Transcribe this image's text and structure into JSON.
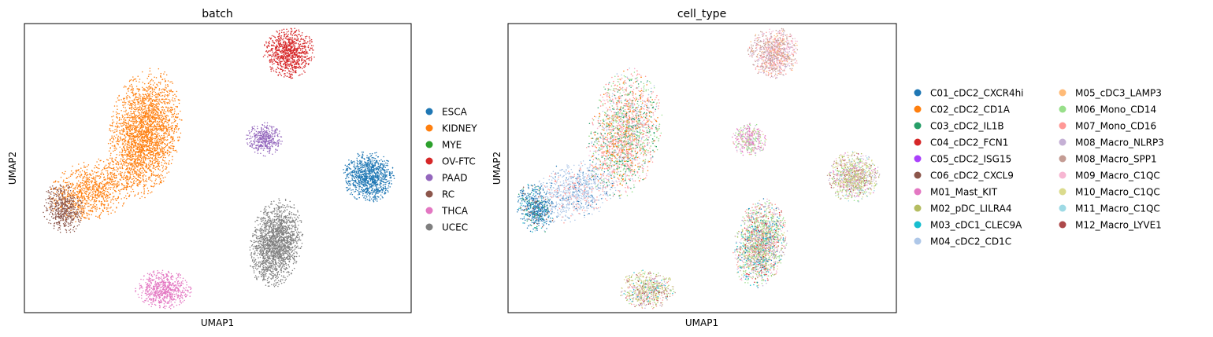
{
  "chart_data": [
    {
      "type": "scatter",
      "title": "batch",
      "xlabel": "UMAP1",
      "ylabel": "UMAP2",
      "grid": false,
      "legend_position": "right",
      "categories": [
        "ESCA",
        "KIDNEY",
        "MYE",
        "OV-FTC",
        "PAAD",
        "RC",
        "THCA",
        "UCEC"
      ],
      "colors": [
        "#1f77b4",
        "#ff7f0e",
        "#2ca02c",
        "#d62728",
        "#9467bd",
        "#8c564b",
        "#e377c2",
        "#7f7f7f"
      ],
      "clusters": [
        {
          "category": "KIDNEY",
          "cx": 0.31,
          "cy": 0.38,
          "rx": 0.09,
          "ry": 0.22,
          "rot": 10,
          "n": 2600
        },
        {
          "category": "KIDNEY",
          "cx": 0.17,
          "cy": 0.58,
          "rx": 0.11,
          "ry": 0.1,
          "rot": -20,
          "n": 900
        },
        {
          "category": "RC",
          "cx": 0.1,
          "cy": 0.64,
          "rx": 0.05,
          "ry": 0.085,
          "rot": -15,
          "n": 500
        },
        {
          "category": "OV-FTC",
          "cx": 0.685,
          "cy": 0.1,
          "rx": 0.065,
          "ry": 0.085,
          "rot": -35,
          "n": 900
        },
        {
          "category": "PAAD",
          "cx": 0.62,
          "cy": 0.4,
          "rx": 0.045,
          "ry": 0.058,
          "rot": 0,
          "n": 380
        },
        {
          "category": "ESCA",
          "cx": 0.89,
          "cy": 0.53,
          "rx": 0.065,
          "ry": 0.085,
          "rot": 0,
          "n": 1000
        },
        {
          "category": "UCEC",
          "cx": 0.65,
          "cy": 0.76,
          "rx": 0.065,
          "ry": 0.15,
          "rot": 10,
          "n": 1800
        },
        {
          "category": "THCA",
          "cx": 0.36,
          "cy": 0.92,
          "rx": 0.07,
          "ry": 0.065,
          "rot": 0,
          "n": 650
        }
      ]
    },
    {
      "type": "scatter",
      "title": "cell_type",
      "xlabel": "UMAP1",
      "ylabel": "UMAP2",
      "grid": false,
      "legend_position": "right",
      "categories": [
        "C01_cDC2_CXCR4hi",
        "C02_cDC2_CD1A",
        "C03_cDC2_IL1B",
        "C04_cDC2_FCN1",
        "C05_cDC2_ISG15",
        "C06_cDC2_CXCL9",
        "M01_Mast_KIT",
        "M02_pDC_LILRA4",
        "M03_cDC1_CLEC9A",
        "M04_cDC2_CD1C",
        "M05_cDC3_LAMP3",
        "M06_Mono_CD14",
        "M07_Mono_CD16",
        "M08_Macro_NLRP3",
        "M08_Macro_SPP1",
        "M09_Macro_C1QC",
        "M10_Macro_C1QC",
        "M11_Macro_C1QC",
        "M12_Macro_LYVE1"
      ],
      "colors": [
        "#1f77b4",
        "#ff7f0e",
        "#279e68",
        "#d62728",
        "#aa40fc",
        "#8c564b",
        "#e377c2",
        "#b5bd61",
        "#17becf",
        "#aec7e8",
        "#ffbb78",
        "#98df8a",
        "#ff9896",
        "#c5b0d5",
        "#c49c94",
        "#f7b6d2",
        "#dbdb8d",
        "#9edae5",
        "#ad494a"
      ],
      "clusters": [
        {
          "mix": [
            12,
            11,
            2,
            1,
            15,
            9
          ],
          "cx": 0.3,
          "cy": 0.38,
          "rx": 0.09,
          "ry": 0.22,
          "rot": 10,
          "n": 2600
        },
        {
          "mix": [
            9,
            9,
            9,
            12,
            0
          ],
          "cx": 0.17,
          "cy": 0.58,
          "rx": 0.11,
          "ry": 0.1,
          "rot": -20,
          "n": 900
        },
        {
          "mix": [
            0,
            0,
            0,
            9,
            5,
            8,
            2
          ],
          "cx": 0.07,
          "cy": 0.64,
          "rx": 0.045,
          "ry": 0.085,
          "rot": -15,
          "n": 550
        },
        {
          "mix": [
            14,
            15,
            12,
            13,
            10
          ],
          "cx": 0.685,
          "cy": 0.1,
          "rx": 0.065,
          "ry": 0.085,
          "rot": -35,
          "n": 900
        },
        {
          "mix": [
            6,
            11,
            15,
            13,
            16
          ],
          "cx": 0.62,
          "cy": 0.4,
          "rx": 0.045,
          "ry": 0.058,
          "rot": 0,
          "n": 380
        },
        {
          "mix": [
            16,
            7,
            13,
            14,
            11,
            6,
            18,
            17,
            15
          ],
          "cx": 0.89,
          "cy": 0.53,
          "rx": 0.065,
          "ry": 0.085,
          "rot": 0,
          "n": 1000
        },
        {
          "mix": [
            11,
            12,
            13,
            14,
            8,
            16,
            7,
            15,
            3,
            0
          ],
          "cx": 0.65,
          "cy": 0.76,
          "rx": 0.065,
          "ry": 0.15,
          "rot": 10,
          "n": 1800
        },
        {
          "mix": [
            16,
            7,
            14,
            11,
            13,
            15,
            18,
            12,
            8
          ],
          "cx": 0.36,
          "cy": 0.92,
          "rx": 0.07,
          "ry": 0.065,
          "rot": 0,
          "n": 650
        }
      ]
    }
  ]
}
